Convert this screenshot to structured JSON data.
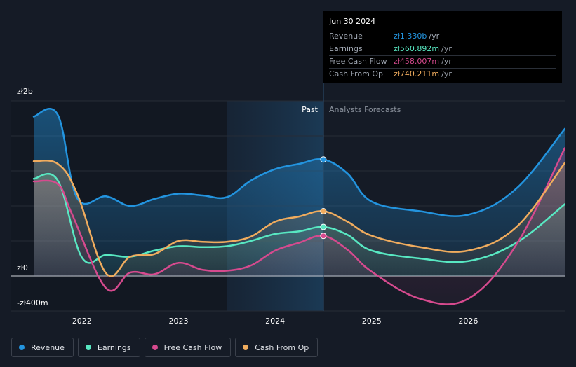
{
  "tooltip": {
    "date": "Jun 30 2024",
    "rows": [
      {
        "label": "Revenue",
        "value": "zł1.330b",
        "unit": "/yr"
      },
      {
        "label": "Earnings",
        "value": "zł560.892m",
        "unit": "/yr"
      },
      {
        "label": "Free Cash Flow",
        "value": "zł458.007m",
        "unit": "/yr"
      },
      {
        "label": "Cash From Op",
        "value": "zł740.211m",
        "unit": "/yr"
      }
    ]
  },
  "labels": {
    "past": "Past",
    "forecast": "Analysts Forecasts"
  },
  "legend": [
    {
      "label": "Revenue"
    },
    {
      "label": "Earnings"
    },
    {
      "label": "Free Cash Flow"
    },
    {
      "label": "Cash From Op"
    }
  ],
  "chart_data": {
    "type": "area",
    "x_domain": [
      2021.5,
      2027.0
    ],
    "ylim": [
      -400,
      2000
    ],
    "y_ticks": [
      {
        "value": 2000,
        "label": "zł2b"
      },
      {
        "value": 0,
        "label": "zł0"
      },
      {
        "value": -400,
        "label": "-zł400m"
      }
    ],
    "x_ticks": [
      {
        "value": 2022,
        "label": "2022"
      },
      {
        "value": 2023,
        "label": "2023"
      },
      {
        "value": 2024,
        "label": "2024"
      },
      {
        "value": 2025,
        "label": "2025"
      },
      {
        "value": 2026,
        "label": "2026"
      }
    ],
    "forecast_region_start": 2023.5,
    "past_end": 2024.5,
    "series": [
      {
        "name": "Revenue",
        "color": "#2394df",
        "x": [
          2021.5,
          2021.75,
          2021.95,
          2022.25,
          2022.5,
          2022.75,
          2023.0,
          2023.25,
          2023.5,
          2023.75,
          2024.0,
          2024.25,
          2024.5,
          2024.75,
          2025.0,
          2025.5,
          2026.0,
          2026.5,
          2027.0
        ],
        "values": [
          1820,
          1840,
          890,
          910,
          800,
          880,
          940,
          920,
          900,
          1090,
          1220,
          1280,
          1330,
          1170,
          850,
          740,
          700,
          1000,
          1680
        ]
      },
      {
        "name": "Earnings",
        "color": "#58e8c2",
        "x": [
          2021.5,
          2021.75,
          2022.0,
          2022.25,
          2022.5,
          2022.75,
          2023.0,
          2023.25,
          2023.5,
          2023.75,
          2024.0,
          2024.25,
          2024.5,
          2024.75,
          2025.0,
          2025.5,
          2026.0,
          2026.5,
          2027.0
        ],
        "values": [
          1110,
          1090,
          210,
          240,
          220,
          290,
          340,
          330,
          340,
          400,
          480,
          510,
          560,
          470,
          290,
          200,
          170,
          380,
          820
        ]
      },
      {
        "name": "Free Cash Flow",
        "color": "#d64a8e",
        "x": [
          2021.5,
          2021.75,
          2021.9,
          2022.25,
          2022.5,
          2022.75,
          2023.0,
          2023.25,
          2023.5,
          2023.75,
          2024.0,
          2024.25,
          2024.5,
          2024.75,
          2025.0,
          2025.5,
          2026.0,
          2026.5,
          2027.0
        ],
        "values": [
          1080,
          1050,
          700,
          -140,
          40,
          20,
          150,
          70,
          60,
          120,
          290,
          380,
          458,
          300,
          50,
          -260,
          -260,
          360,
          1460
        ]
      },
      {
        "name": "Cash From Op",
        "color": "#f0ac5e",
        "x": [
          2021.5,
          2021.75,
          2021.95,
          2022.25,
          2022.5,
          2022.75,
          2023.0,
          2023.25,
          2023.5,
          2023.75,
          2024.0,
          2024.25,
          2024.5,
          2024.75,
          2025.0,
          2025.5,
          2026.0,
          2026.5,
          2027.0
        ],
        "values": [
          1310,
          1280,
          940,
          30,
          220,
          250,
          400,
          390,
          390,
          450,
          620,
          680,
          740,
          620,
          460,
          330,
          290,
          560,
          1290
        ]
      }
    ]
  }
}
